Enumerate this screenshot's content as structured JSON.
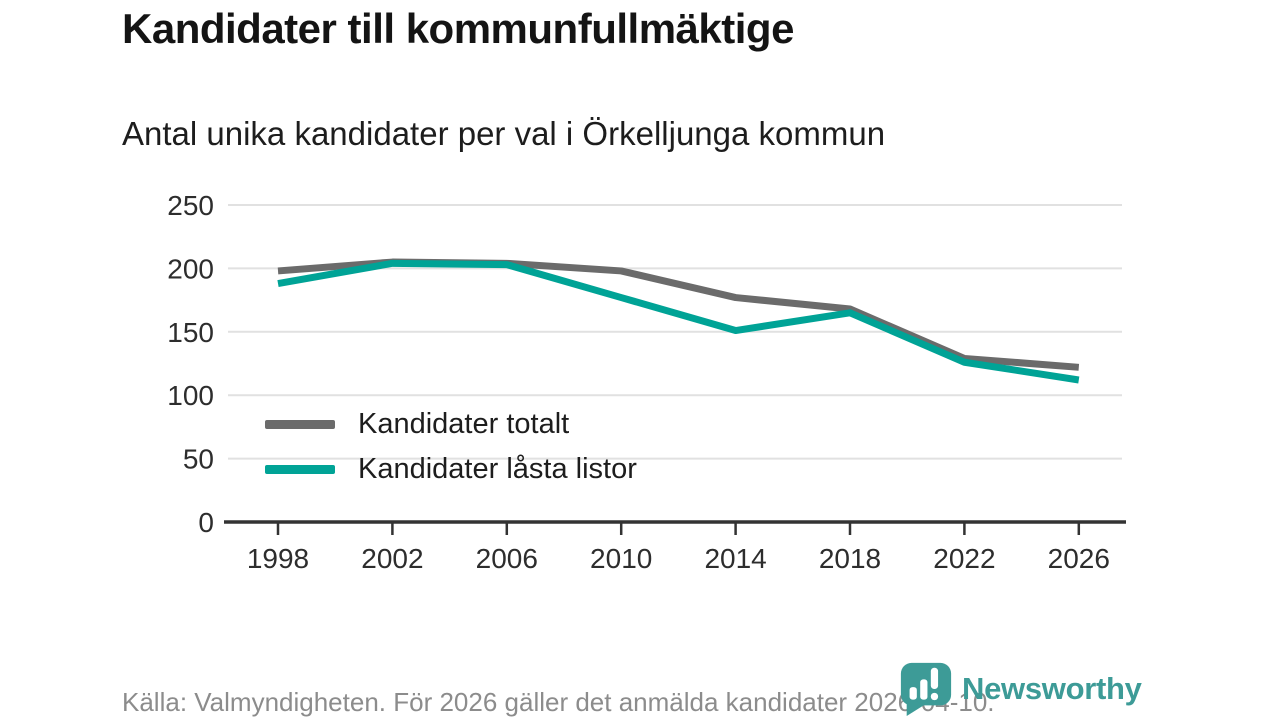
{
  "title": "Kandidater till kommunfullmäktige",
  "subtitle": "Antal unika kandidater per val i Örkelljunga kommun",
  "chart_data": {
    "type": "line",
    "x": [
      1998,
      2002,
      2006,
      2010,
      2014,
      2018,
      2022,
      2026
    ],
    "series": [
      {
        "name": "Kandidater totalt",
        "color": "#6b6b6b",
        "values": [
          198,
          205,
          204,
          198,
          177,
          168,
          129,
          122
        ]
      },
      {
        "name": "Kandidater låsta listor",
        "color": "#00a396",
        "values": [
          188,
          204,
          203,
          177,
          151,
          165,
          126,
          112
        ]
      }
    ],
    "title": "Kandidater till kommunfullmäktige",
    "subtitle": "Antal unika kandidater per val i Örkelljunga kommun",
    "xlabel": "",
    "ylabel": "",
    "ylim": [
      0,
      250
    ],
    "yticks": [
      0,
      50,
      100,
      150,
      200,
      250
    ],
    "grid": true,
    "legend_position": "inside-bottom-left"
  },
  "footer": {
    "source": "Källa: Valmyndigheten. För 2026 gäller det anmälda kandidater 2026-04-10."
  },
  "logo": {
    "text": "Newsworthy",
    "icon": "newsworthy-bubble-barchart-icon",
    "color": "#3d9b97"
  },
  "colors": {
    "grid": "#e1e1e1",
    "axis": "#333333",
    "tick_label": "#2d2d2d"
  }
}
